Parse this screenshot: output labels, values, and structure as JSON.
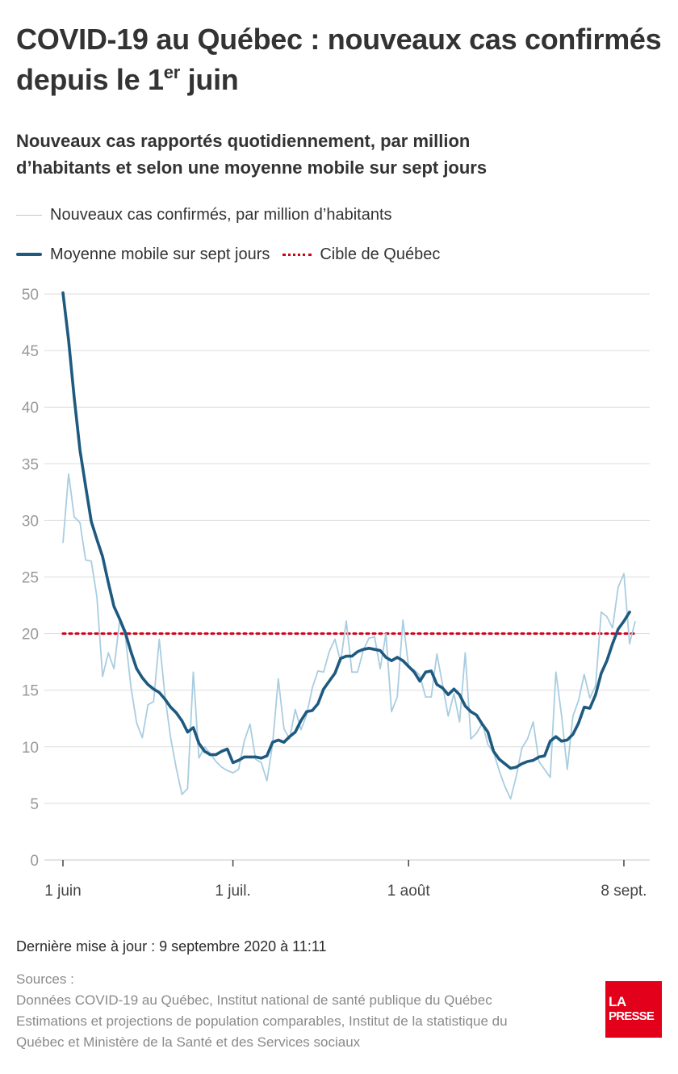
{
  "header": {
    "title_main": "COVID-19 au Québec : nouveaux cas confirmés depuis le 1",
    "title_sup": "er",
    "title_end": " juin",
    "subtitle_line1": "Nouveaux cas rapportés quotidiennement, par million",
    "subtitle_line2": "d’habitants et selon une moyenne mobile sur sept jours"
  },
  "legend": {
    "daily": "Nouveaux cas confirmés, par million d’habitants",
    "rolling": "Moyenne mobile sur sept jours",
    "target": "Cible de Québec"
  },
  "colors": {
    "daily": "#a9cde0",
    "rolling": "#1e5a80",
    "target": "#d0021b",
    "grid": "#dddddd",
    "axis_text": "#999999",
    "logo": "#e2001a"
  },
  "chart_data": {
    "type": "line",
    "ylim": [
      0,
      50
    ],
    "y_ticks": [
      "0",
      "5",
      "10",
      "15",
      "20",
      "25",
      "30",
      "35",
      "40",
      "45",
      "50"
    ],
    "x_ticks": [
      {
        "label": "1 juin",
        "day": 0
      },
      {
        "label": "1 juil.",
        "day": 30
      },
      {
        "label": "1 août",
        "day": 61
      },
      {
        "label": "8 sept.",
        "day": 99
      }
    ],
    "target": 20,
    "series": [
      {
        "name": "Nouveaux cas confirmés, par million d’habitants",
        "values": [
          28,
          34.1,
          30.3,
          29.8,
          26.5,
          26.4,
          23.2,
          16.2,
          18.3,
          16.9,
          21.1,
          19.8,
          15.3,
          12.1,
          10.8,
          13.7,
          14,
          19.5,
          14.5,
          10.8,
          8.1,
          5.8,
          6.3,
          16.6,
          9,
          10,
          9.4,
          8.7,
          8.2,
          7.9,
          7.7,
          8,
          10.5,
          12,
          8.9,
          8.6,
          7,
          10.2,
          16,
          11.6,
          10.7,
          13.3,
          11.5,
          12.8,
          15.2,
          16.7,
          16.6,
          18.4,
          19.5,
          17.5,
          21.1,
          16.6,
          16.6,
          18.5,
          19.6,
          19.7,
          16.9,
          20,
          13.1,
          14.4,
          21.2,
          17.1,
          16.8,
          16.3,
          14.4,
          14.4,
          18.2,
          15.5,
          12.7,
          14.7,
          12.2,
          18.3,
          10.7,
          11.2,
          12.1,
          10.2,
          9.5,
          7.9,
          6.5,
          5.4,
          7.4,
          9.9,
          10.7,
          12.2,
          8.7,
          8,
          7.3,
          16.6,
          12.8,
          8,
          12.7,
          14.1,
          16.4,
          14.3,
          15.4,
          21.9,
          21.5,
          20.5,
          24.1,
          25.3,
          19.1,
          21.1
        ]
      },
      {
        "name": "Moyenne mobile sur sept jours",
        "values": [
          50.1,
          45.9,
          40.8,
          36.2,
          33,
          29.9,
          28.3,
          26.8,
          24.5,
          22.4,
          21.3,
          20.1,
          18.4,
          16.9,
          16.1,
          15.5,
          15.1,
          14.8,
          14.2,
          13.5,
          13,
          12.3,
          11.3,
          11.7,
          10.3,
          9.6,
          9.3,
          9.3,
          9.6,
          9.8,
          8.6,
          8.8,
          9.1,
          9.1,
          9.1,
          9,
          9.2,
          10.4,
          10.6,
          10.4,
          10.9,
          11.3,
          12.3,
          13.1,
          13.2,
          13.8,
          15.1,
          15.8,
          16.5,
          17.8,
          18,
          18,
          18.4,
          18.6,
          18.7,
          18.6,
          18.5,
          17.9,
          17.6,
          17.9,
          17.6,
          17.1,
          16.6,
          15.8,
          16.6,
          16.7,
          15.5,
          15.2,
          14.6,
          15.1,
          14.6,
          13.6,
          13.1,
          12.8,
          12,
          11.3,
          9.6,
          8.9,
          8.5,
          8.1,
          8.2,
          8.5,
          8.7,
          8.8,
          9.1,
          9.2,
          10.5,
          10.9,
          10.5,
          10.6,
          11.1,
          12.1,
          13.5,
          13.4,
          14.6,
          16.5,
          17.6,
          19.1,
          20.4,
          21.1,
          21.9
        ]
      }
    ]
  },
  "footer": {
    "updated": "Dernière mise à jour : 9 septembre 2020 à 11:11",
    "sources_label": "Sources :",
    "source_1": "Données COVID-19 au Québec, Institut national de santé publique du Québec",
    "source_2": "Estimations et projections de population comparables, Institut de la statistique du",
    "source_3": "Québec et Ministère de la Santé et des Services sociaux",
    "logo_line1": "LA",
    "logo_line2": "PRESSE"
  }
}
